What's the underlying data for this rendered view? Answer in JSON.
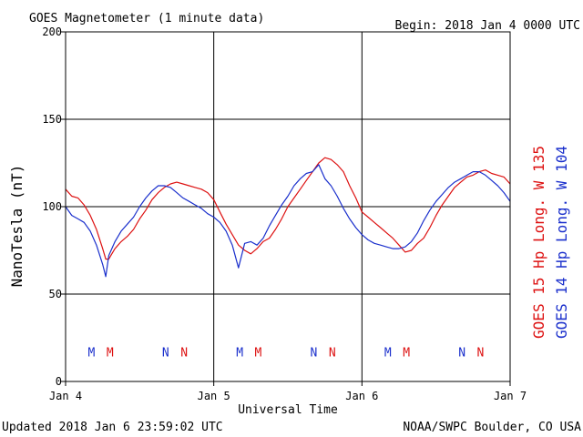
{
  "header": {
    "title": "GOES Magnetometer (1 minute data)",
    "begin": "Begin:  2018 Jan 4 0000 UTC"
  },
  "footer": {
    "updated": "Updated 2018 Jan  6 23:59:02 UTC",
    "credit": "NOAA/SWPC Boulder, CO USA"
  },
  "chart_data": {
    "type": "line",
    "xlabel": "Universal Time",
    "ylabel": "NanoTesla (nT)",
    "ylim": [
      0,
      200
    ],
    "yticks": [
      0,
      50,
      100,
      150,
      200
    ],
    "xlim": [
      0,
      72
    ],
    "xticks": [
      {
        "x": 0,
        "label": "Jan 4"
      },
      {
        "x": 24,
        "label": "Jan 5"
      },
      {
        "x": 48,
        "label": "Jan 6"
      },
      {
        "x": 72,
        "label": "Jan 7"
      }
    ],
    "grid": true,
    "legend_placement": "right-vertical",
    "series": [
      {
        "name": "GOES 15 Hp  Long. W 135",
        "color": "#dd1111",
        "x": [
          0,
          1,
          2,
          3,
          4,
          5,
          6,
          6.5,
          7,
          8,
          9,
          10,
          11,
          12,
          13,
          14,
          15,
          16,
          17,
          18,
          19,
          20,
          21,
          22,
          23,
          24,
          25,
          26,
          27,
          28,
          29,
          30,
          31,
          32,
          33,
          34,
          35,
          36,
          37,
          38,
          39,
          40,
          41,
          42,
          43,
          44,
          45,
          46,
          47,
          48,
          49,
          50,
          51,
          52,
          53,
          54,
          55,
          56,
          57,
          58,
          59,
          60,
          61,
          62,
          63,
          64,
          65,
          66,
          67,
          68,
          69,
          70,
          71,
          72
        ],
        "y": [
          110,
          106,
          105,
          101,
          95,
          87,
          76,
          70,
          70,
          76,
          80,
          83,
          87,
          93,
          98,
          104,
          108,
          111,
          113,
          114,
          113,
          112,
          111,
          110,
          108,
          104,
          97,
          90,
          84,
          78,
          75,
          73,
          76,
          80,
          82,
          87,
          93,
          100,
          105,
          110,
          115,
          120,
          125,
          128,
          127,
          124,
          120,
          112,
          105,
          97,
          94,
          91,
          88,
          85,
          82,
          78,
          74,
          75,
          79,
          82,
          88,
          95,
          101,
          106,
          111,
          114,
          117,
          118,
          120,
          121,
          119,
          118,
          117,
          113
        ]
      },
      {
        "name": "GOES 14 Hp  Long. W 104",
        "color": "#1a2fcc",
        "x": [
          0,
          1,
          2,
          3,
          4,
          5,
          6,
          6.5,
          7,
          8,
          9,
          10,
          11,
          12,
          13,
          14,
          15,
          16,
          17,
          18,
          19,
          20,
          21,
          22,
          23,
          24,
          25,
          26,
          27,
          28,
          29,
          30,
          31,
          32,
          33,
          34,
          35,
          36,
          37,
          38,
          39,
          40,
          41,
          42,
          43,
          44,
          45,
          46,
          47,
          48,
          49,
          50,
          51,
          52,
          53,
          54,
          55,
          56,
          57,
          58,
          59,
          60,
          61,
          62,
          63,
          64,
          65,
          66,
          67,
          68,
          69,
          70,
          71,
          72
        ],
        "y": [
          100,
          95,
          93,
          91,
          86,
          78,
          67,
          60,
          72,
          80,
          86,
          90,
          94,
          100,
          105,
          109,
          112,
          112,
          111,
          108,
          105,
          103,
          101,
          99,
          96,
          94,
          91,
          86,
          78,
          65,
          79,
          80,
          78,
          82,
          89,
          95,
          101,
          106,
          112,
          116,
          119,
          120,
          124,
          116,
          112,
          106,
          99,
          93,
          88,
          84,
          81,
          79,
          78,
          77,
          76,
          76,
          77,
          80,
          85,
          92,
          98,
          103,
          107,
          111,
          114,
          116,
          118,
          120,
          120,
          118,
          115,
          112,
          108,
          103
        ]
      }
    ],
    "markers": [
      {
        "label": "M",
        "x": 4.2,
        "series": 1
      },
      {
        "label": "M",
        "x": 7.2,
        "series": 0
      },
      {
        "label": "N",
        "x": 16.2,
        "series": 1
      },
      {
        "label": "N",
        "x": 19.2,
        "series": 0
      },
      {
        "label": "M",
        "x": 28.2,
        "series": 1
      },
      {
        "label": "M",
        "x": 31.2,
        "series": 0
      },
      {
        "label": "N",
        "x": 40.2,
        "series": 1
      },
      {
        "label": "N",
        "x": 43.2,
        "series": 0
      },
      {
        "label": "M",
        "x": 52.2,
        "series": 1
      },
      {
        "label": "M",
        "x": 55.2,
        "series": 0
      },
      {
        "label": "N",
        "x": 64.2,
        "series": 1
      },
      {
        "label": "N",
        "x": 67.2,
        "series": 0
      }
    ],
    "marker_level": 17
  }
}
